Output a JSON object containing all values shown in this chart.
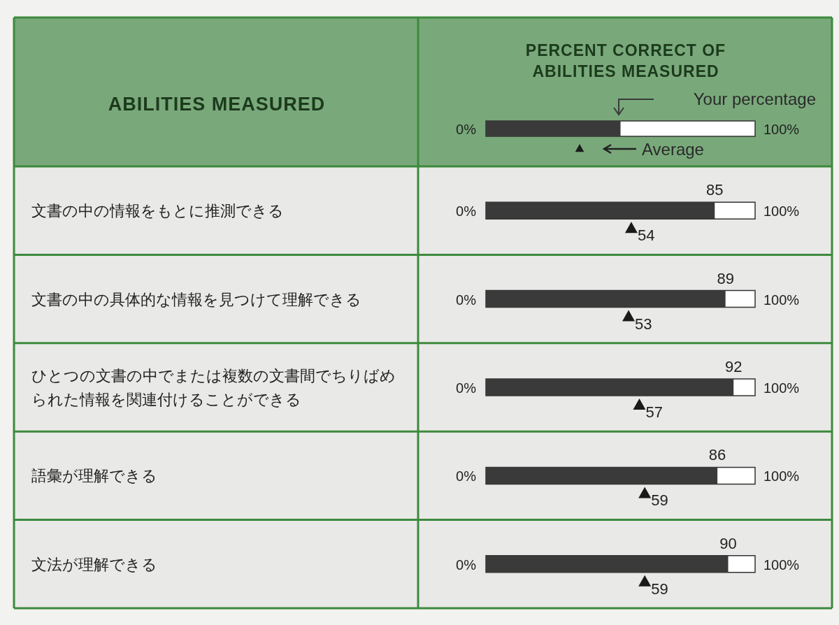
{
  "chart_data": {
    "type": "bar",
    "orientation": "horizontal",
    "title": "PERCENT CORRECT OF ABILITIES MEASURED",
    "ylabel": "ABILITIES MEASURED",
    "categories": [
      "文書の中の情報をもとに推測できる",
      "文書の中の具体的な情報を見つけて理解できる",
      "ひとつの文書の中でまたは複数の文書間でちりばめられた情報を関連付けることができる",
      "語彙が理解できる",
      "文法が理解できる"
    ],
    "series": [
      {
        "name": "Your percentage",
        "color": "#3a3a3a",
        "values": [
          85,
          89,
          92,
          86,
          90
        ]
      },
      {
        "name": "Average",
        "type": "scatter",
        "marker": "triangle",
        "color": "#1a1a1a",
        "values": [
          54,
          53,
          57,
          59,
          59
        ]
      }
    ],
    "xlim": [
      0,
      100
    ],
    "annotations": [
      "0%",
      "100%"
    ],
    "data_labels": true,
    "legend": "top right"
  }
}
